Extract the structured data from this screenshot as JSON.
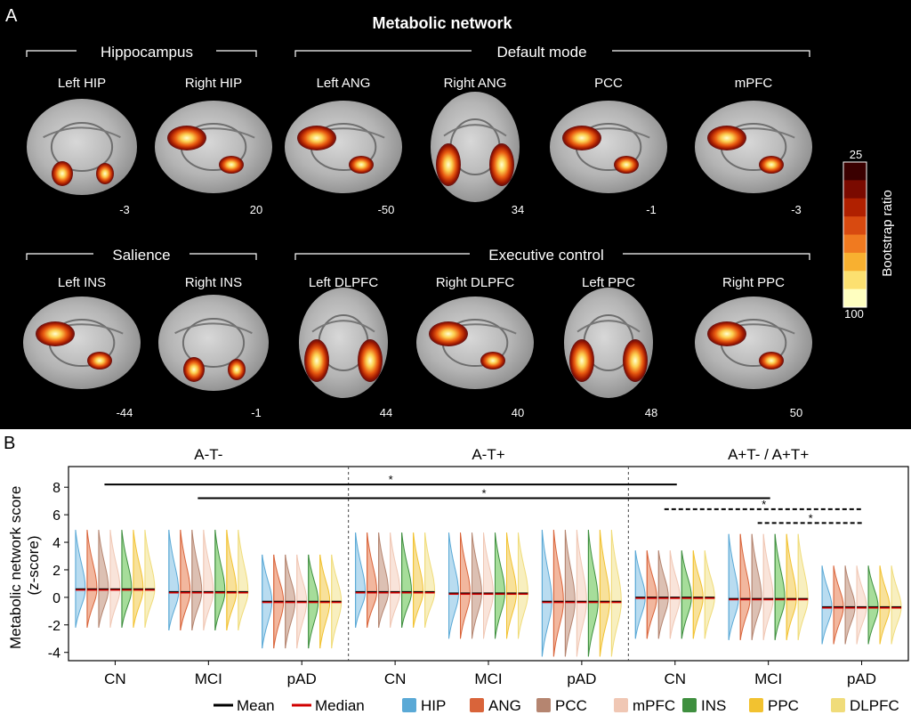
{
  "panel_a": {
    "letter": "A",
    "title": "Metabolic network",
    "group_headers": [
      "Hippocampus",
      "Default mode",
      "Salience",
      "Executive control"
    ],
    "rows": [
      [
        {
          "label": "Left HIP",
          "slice": "-3",
          "view": "coronal"
        },
        {
          "label": "Right HIP",
          "slice": "20",
          "view": "sagittal"
        },
        {
          "label": "Left ANG",
          "slice": "-50",
          "view": "sagittal"
        },
        {
          "label": "Right ANG",
          "slice": "34",
          "view": "axial"
        },
        {
          "label": "PCC",
          "slice": "-1",
          "view": "sagittal"
        },
        {
          "label": "mPFC",
          "slice": "-3",
          "view": "sagittal"
        }
      ],
      [
        {
          "label": "Left INS",
          "slice": "-44",
          "view": "sagittal"
        },
        {
          "label": "Right INS",
          "slice": "-1",
          "view": "coronal"
        },
        {
          "label": "Left DLPFC",
          "slice": "44",
          "view": "axial"
        },
        {
          "label": "Right DLPFC",
          "slice": "40",
          "view": "sagittal"
        },
        {
          "label": "Left PPC",
          "slice": "48",
          "view": "axial"
        },
        {
          "label": "Right PPC",
          "slice": "50",
          "view": "sagittal"
        }
      ]
    ],
    "colorbar": {
      "label": "Bootstrap ratio",
      "min": "25",
      "max": "100",
      "colors": [
        "#3a0000",
        "#7a0a00",
        "#b02000",
        "#d84a10",
        "#f07a20",
        "#f8b030",
        "#fce070",
        "#ffffc0"
      ]
    }
  },
  "chart_data": {
    "type": "violin",
    "panel_letter": "B",
    "ylabel": "Metabolic network score (z-score)",
    "ylim": [
      -4.6,
      9.5
    ],
    "yticks": [
      -4,
      -2,
      0,
      2,
      4,
      6,
      8
    ],
    "facets": [
      "A-T-",
      "A-T+",
      "A+T- / A+T+"
    ],
    "groups": [
      "CN",
      "MCI",
      "pAD"
    ],
    "networks": [
      "HIP",
      "ANG",
      "PCC",
      "mPFC",
      "INS",
      "PPC",
      "DLPFC"
    ],
    "network_colors": [
      "#5aa9d6",
      "#d9643a",
      "#b58570",
      "#f0c7b4",
      "#3f8f3f",
      "#f2c230",
      "#f0dc7a"
    ],
    "network_fill_colors": [
      "#b9dcf0",
      "#f2b79e",
      "#dcc0b3",
      "#f9e4da",
      "#a6dd9a",
      "#f8e19a",
      "#f8efbf"
    ],
    "series": [
      {
        "facet": "A-T-",
        "group": "CN",
        "mean": 0.6,
        "median": 0.6,
        "min": -2.2,
        "max": 4.9
      },
      {
        "facet": "A-T-",
        "group": "MCI",
        "mean": 0.4,
        "median": 0.4,
        "min": -2.4,
        "max": 4.9
      },
      {
        "facet": "A-T-",
        "group": "pAD",
        "mean": -0.3,
        "median": -0.3,
        "min": -3.7,
        "max": 3.1
      },
      {
        "facet": "A-T+",
        "group": "CN",
        "mean": 0.4,
        "median": 0.4,
        "min": -2.2,
        "max": 4.7
      },
      {
        "facet": "A-T+",
        "group": "MCI",
        "mean": 0.3,
        "median": 0.3,
        "min": -3.0,
        "max": 4.7
      },
      {
        "facet": "A-T+",
        "group": "pAD",
        "mean": -0.3,
        "median": -0.3,
        "min": -4.3,
        "max": 4.9
      },
      {
        "facet": "A+T- / A+T+",
        "group": "CN",
        "mean": 0.0,
        "median": 0.0,
        "min": -3.0,
        "max": 3.4
      },
      {
        "facet": "A+T- / A+T+",
        "group": "MCI",
        "mean": -0.1,
        "median": -0.1,
        "min": -3.1,
        "max": 4.6
      },
      {
        "facet": "A+T- / A+T+",
        "group": "pAD",
        "mean": -0.7,
        "median": -0.7,
        "min": -3.4,
        "max": 2.3
      }
    ],
    "significance": [
      {
        "from": "A-T- CN",
        "to": "A+T- / A+T+ CN",
        "y": 8.2,
        "style": "solid",
        "label": "*"
      },
      {
        "from": "A-T- MCI",
        "to": "A+T- / A+T+ MCI",
        "y": 7.2,
        "style": "solid",
        "label": "*"
      },
      {
        "from": "A+T- / A+T+ CN",
        "to": "A+T- / A+T+ pAD",
        "y": 6.4,
        "style": "dashed",
        "label": "*"
      },
      {
        "from": "A+T- / A+T+ MCI",
        "to": "A+T- / A+T+ pAD",
        "y": 5.4,
        "style": "dashed",
        "label": "*"
      }
    ],
    "legend": {
      "mean_label": "Mean",
      "median_label": "Median",
      "mean_color": "#000000",
      "median_color": "#d00000"
    },
    "legend_position": "bottom"
  }
}
